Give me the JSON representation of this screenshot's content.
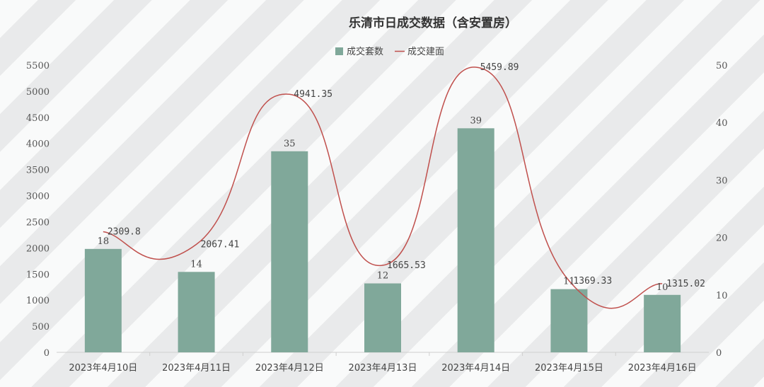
{
  "chart_data": {
    "type": "bar",
    "title": "乐清市日成交数据（含安置房）",
    "categories": [
      "2023年4月10日",
      "2023年4月11日",
      "2023年4月12日",
      "2023年4月13日",
      "2023年4月14日",
      "2023年4月15日",
      "2023年4月16日"
    ],
    "series": [
      {
        "name": "成交套数",
        "type": "bar",
        "axis": "right",
        "color": "#80a89a",
        "values": [
          18,
          14,
          35,
          12,
          39,
          11,
          10
        ]
      },
      {
        "name": "成交建面",
        "type": "line",
        "axis": "left",
        "color": "#c0504d",
        "smooth": true,
        "values": [
          2309.8,
          2067.41,
          4941.35,
          1665.53,
          5459.89,
          1369.33,
          1315.02
        ]
      }
    ],
    "value_labels": {
      "bars": [
        "18",
        "14",
        "35",
        "12",
        "39",
        "11",
        "10"
      ],
      "line": [
        "2309.8",
        "2067.41",
        "4941.35",
        "1665.53",
        "5459.89",
        "1369.33",
        "1315.02"
      ]
    },
    "left_axis": {
      "min": 0,
      "max": 5500,
      "step": 500
    },
    "right_axis": {
      "min": 0,
      "max": 50,
      "step": 10
    },
    "legend_position": "top-center",
    "grid": false
  }
}
